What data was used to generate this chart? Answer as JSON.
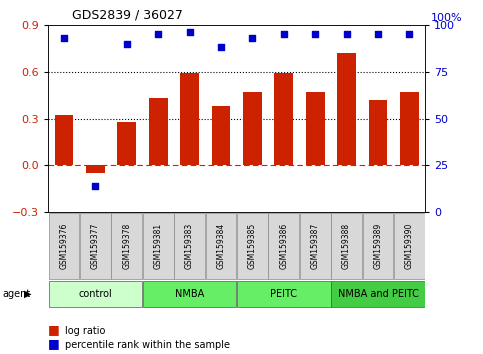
{
  "title": "GDS2839 / 36027",
  "samples": [
    "GSM159376",
    "GSM159377",
    "GSM159378",
    "GSM159381",
    "GSM159383",
    "GSM159384",
    "GSM159385",
    "GSM159386",
    "GSM159387",
    "GSM159388",
    "GSM159389",
    "GSM159390"
  ],
  "log_ratio": [
    0.32,
    -0.05,
    0.28,
    0.43,
    0.59,
    0.38,
    0.47,
    0.59,
    0.47,
    0.72,
    0.42,
    0.47
  ],
  "percentile_rank": [
    93,
    14,
    90,
    95,
    96,
    88,
    93,
    95,
    95,
    95,
    95,
    95
  ],
  "bar_color": "#cc2200",
  "dot_color": "#0000cc",
  "ylim_left": [
    -0.3,
    0.9
  ],
  "ylim_right": [
    0,
    100
  ],
  "yticks_left": [
    -0.3,
    0.0,
    0.3,
    0.6,
    0.9
  ],
  "yticks_right": [
    0,
    25,
    50,
    75,
    100
  ],
  "hlines": [
    0.3,
    0.6
  ],
  "hline_zero": 0.0,
  "groups": [
    {
      "label": "control",
      "start": 0,
      "end": 3,
      "color": "#ccffcc"
    },
    {
      "label": "NMBA",
      "start": 3,
      "end": 6,
      "color": "#66ee66"
    },
    {
      "label": "PEITC",
      "start": 6,
      "end": 9,
      "color": "#66ee66"
    },
    {
      "label": "NMBA and PEITC",
      "start": 9,
      "end": 12,
      "color": "#44cc44"
    }
  ],
  "agent_label": "agent",
  "legend_bar_label": "log ratio",
  "legend_dot_label": "percentile rank within the sample",
  "background_color": "#ffffff",
  "tick_label_color_left": "#cc2200",
  "tick_label_color_right": "#0000cc"
}
